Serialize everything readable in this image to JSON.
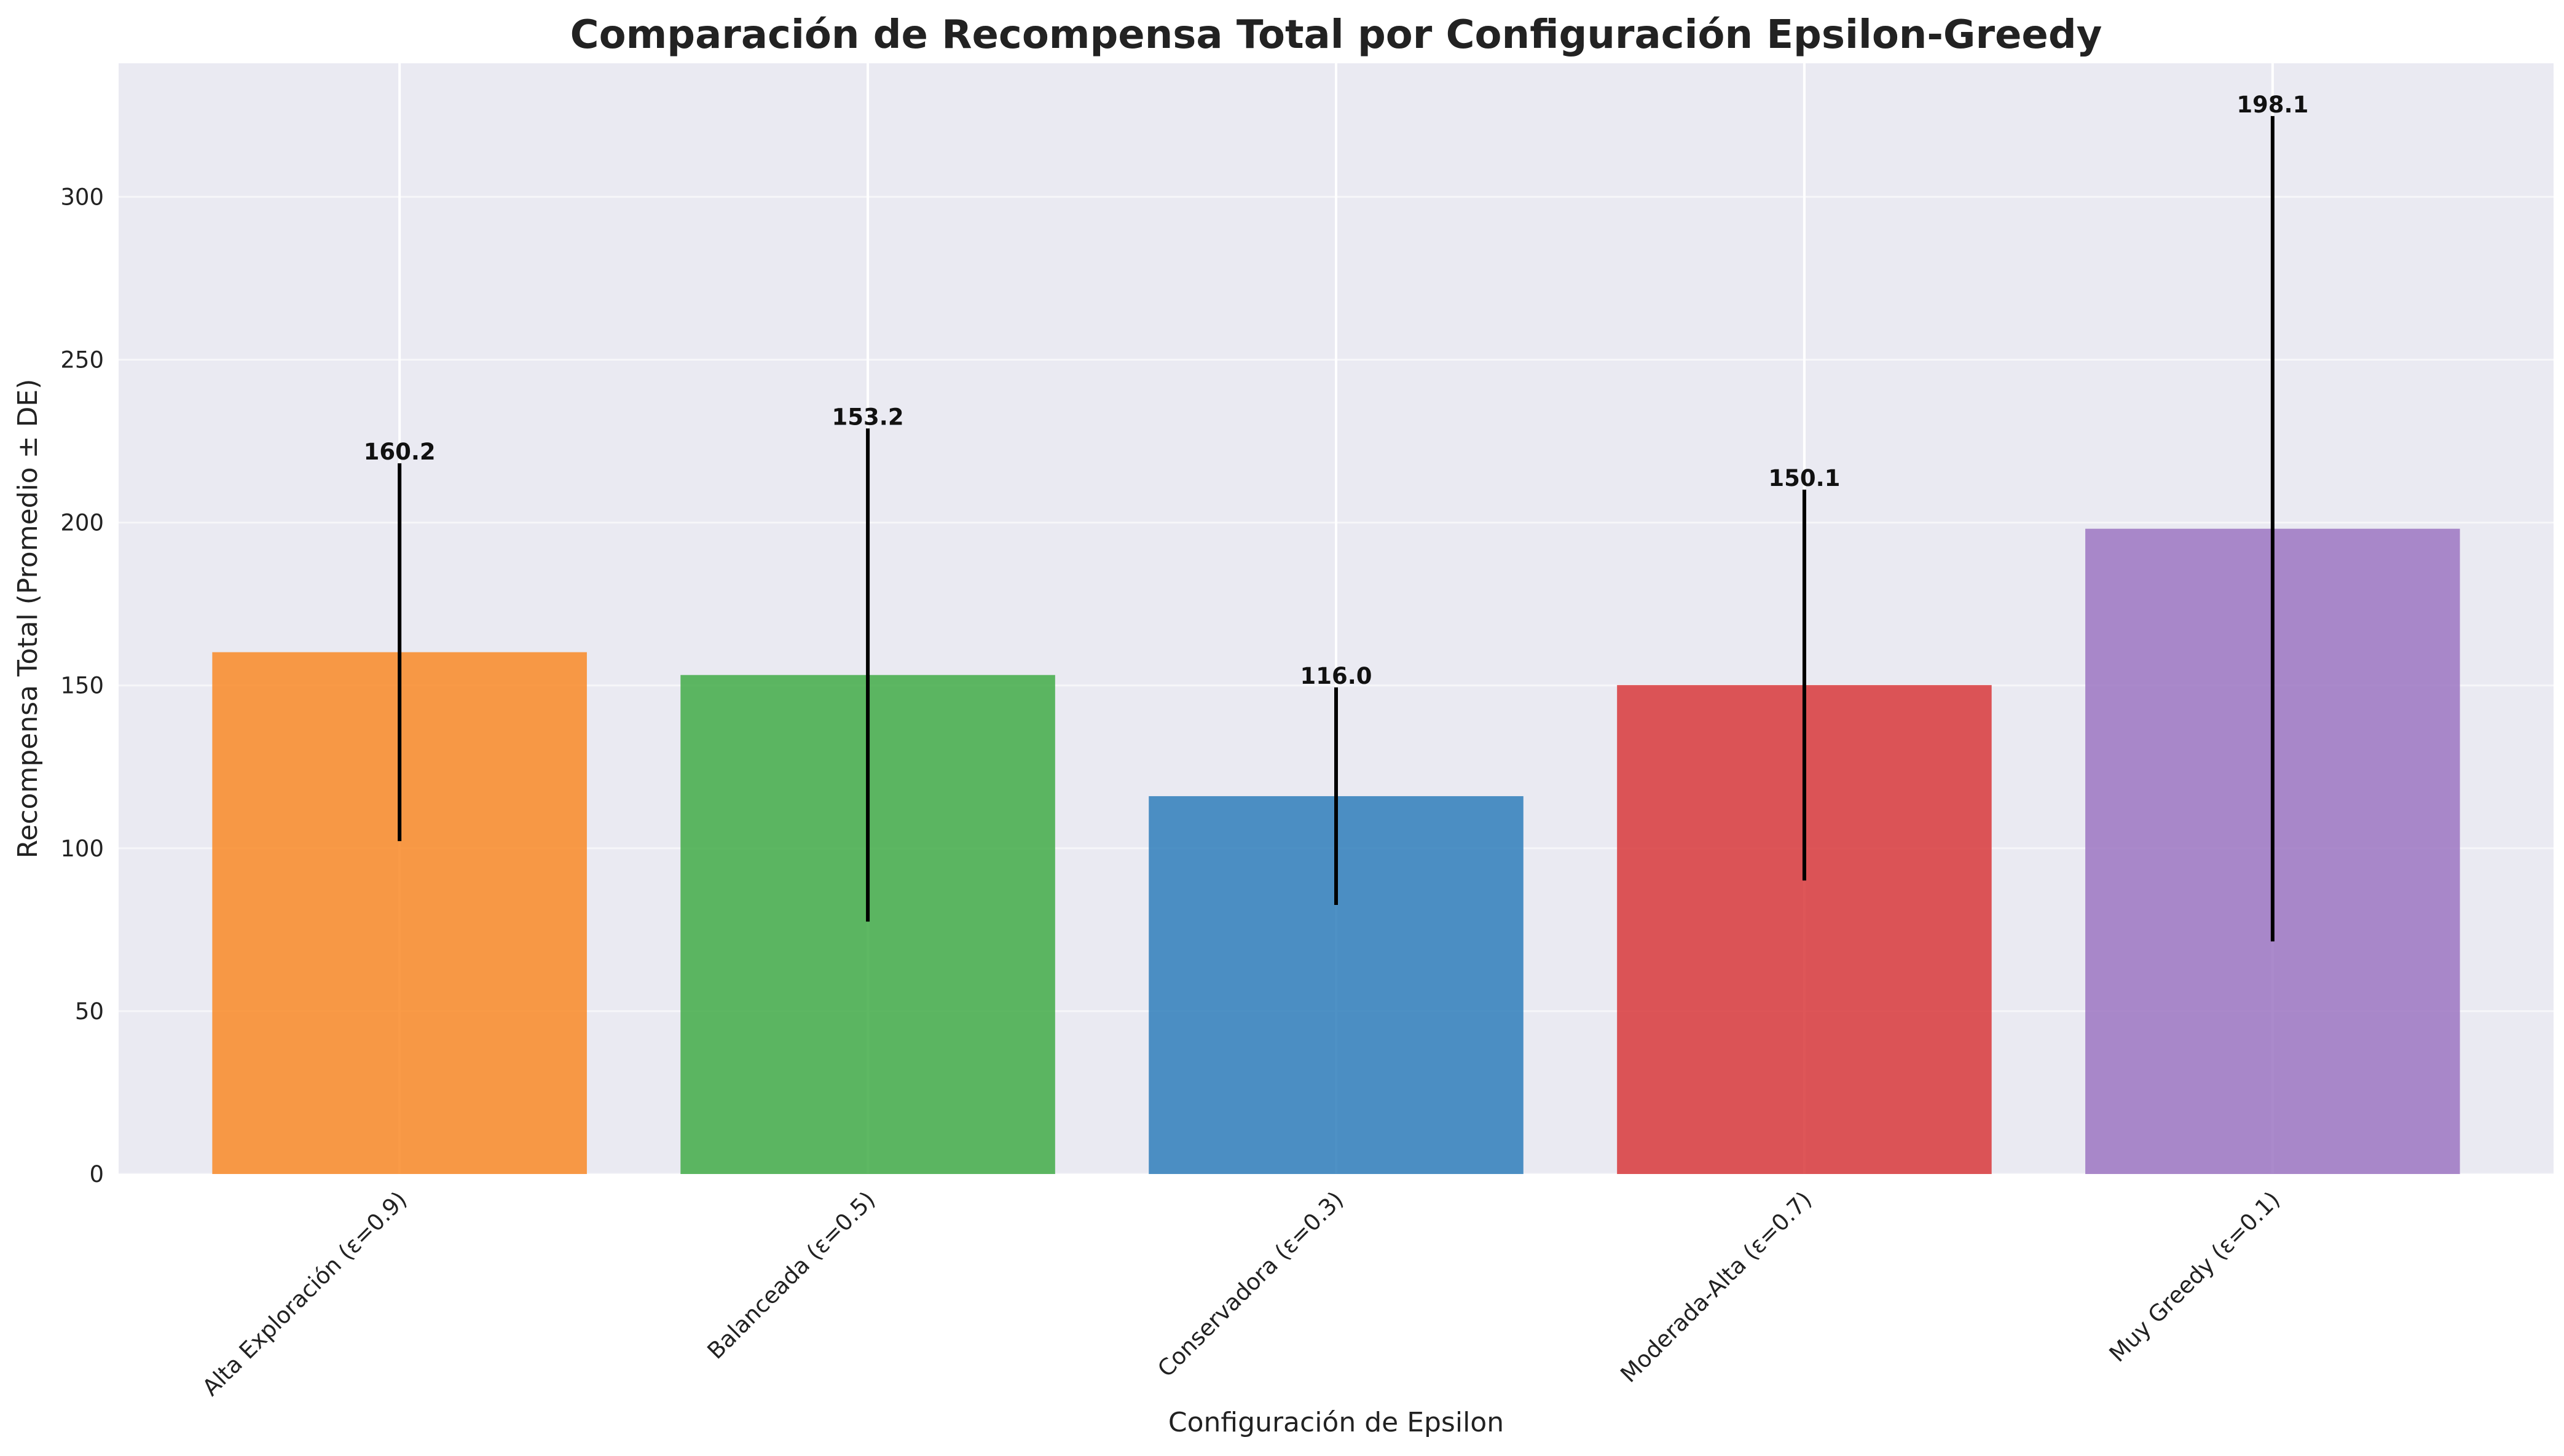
{
  "chart_data": {
    "type": "bar",
    "title": "Comparación de Recompensa Total por Configuración Epsilon-Greedy",
    "xlabel": "Configuración de Epsilon",
    "ylabel": "Recompensa Total (Promedio ± DE)",
    "categories": [
      "Alta Exploración (ε=0.9)",
      "Balanceada (ε=0.5)",
      "Conservadora (ε=0.3)",
      "Moderada-Alta (ε=0.7)",
      "Muy Greedy (ε=0.1)"
    ],
    "values": [
      160.2,
      153.2,
      116.0,
      150.1,
      198.1
    ],
    "value_labels": [
      "160.2",
      "153.2",
      "116.0",
      "150.1",
      "198.1"
    ],
    "error": [
      58.0,
      75.7,
      33.4,
      60.0,
      126.7
    ],
    "colors": [
      "#f98a27",
      "#42ab48",
      "#2f7ebb",
      "#d8383b",
      "#9c76c2"
    ],
    "ylim": [
      0,
      341
    ],
    "yticks": [
      0,
      50,
      100,
      150,
      200,
      250,
      300
    ],
    "ytick_labels": [
      "0",
      "50",
      "100",
      "150",
      "200",
      "250",
      "300"
    ],
    "grid": true,
    "legend": "none"
  }
}
